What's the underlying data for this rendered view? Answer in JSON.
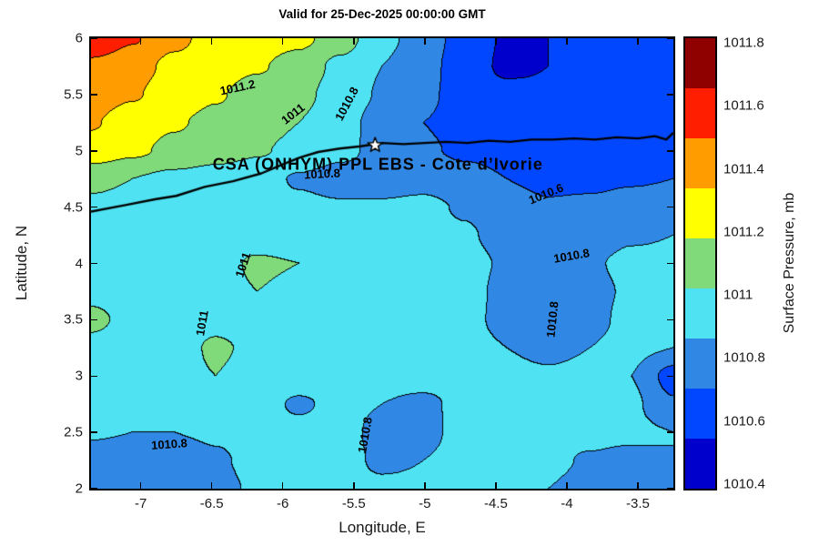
{
  "title": "Valid for 25-Dec-2025 00:00:00 GMT",
  "axes": {
    "xlabel": "Longitude, E",
    "ylabel": "Latitude, N",
    "xticks": {
      "values": [
        -7,
        -6.5,
        -6,
        -5.5,
        -5,
        -4.5,
        -4,
        -3.5
      ],
      "labels": [
        "-7",
        "-6.5",
        "-6",
        "-5.5",
        "-5",
        "-4.5",
        "-4",
        "-3.5"
      ]
    },
    "yticks": {
      "values": [
        6,
        5.5,
        5,
        4.5,
        4,
        3.5,
        3,
        2.5,
        2
      ],
      "labels": [
        "6",
        "5.5",
        "5",
        "4.5",
        "4",
        "3.5",
        "3",
        "2.5",
        "2"
      ]
    }
  },
  "colorbar": {
    "label": "Surface Pressure, mb",
    "tick_labels": [
      "1011.8",
      "1011.6",
      "1011.4",
      "1011.2",
      "1011",
      "1010.8",
      "1010.6",
      "1010.4"
    ],
    "colors_top_to_bottom": [
      "#8f0000",
      "#ff1e00",
      "#ff9c00",
      "#ffff00",
      "#80da7a",
      "#4fe2f2",
      "#3188e4",
      "#0047ff",
      "#0000cd"
    ]
  },
  "chart_data": {
    "type": "filled_contour",
    "units": "mb",
    "xlim": [
      -7.35,
      -3.25
    ],
    "ylim": [
      2,
      6
    ],
    "levels": [
      1010.4,
      1010.6,
      1010.8,
      1011.0,
      1011.2,
      1011.4,
      1011.6,
      1011.8
    ],
    "band_colors": [
      "#0000cd",
      "#0047ff",
      "#3188e4",
      "#4fe2f2",
      "#80da7a",
      "#ffff00",
      "#ff9c00",
      "#ff1e00",
      "#8f0000"
    ],
    "grid": {
      "note": "surface pressure (mb); rows top lat 6.0 to bottom lat 2.0, cols lon -7.35 to -3.25",
      "values": [
        [
          1011.78,
          1011.62,
          1011.45,
          1011.32,
          1011.3,
          1011.25,
          1011.1,
          1010.85,
          1010.72,
          1010.5,
          1010.38,
          1010.4,
          1010.44,
          1010.5,
          1010.58
        ],
        [
          1011.55,
          1011.48,
          1011.35,
          1011.28,
          1011.22,
          1011.12,
          1010.95,
          1010.8,
          1010.68,
          1010.48,
          1010.37,
          1010.4,
          1010.42,
          1010.48,
          1010.55
        ],
        [
          1011.5,
          1011.42,
          1011.3,
          1011.22,
          1011.12,
          1011.05,
          1010.92,
          1010.78,
          1010.65,
          1010.5,
          1010.44,
          1010.42,
          1010.45,
          1010.5,
          1010.55
        ],
        [
          1011.42,
          1011.3,
          1011.22,
          1011.15,
          1011.08,
          1011.0,
          1010.88,
          1010.72,
          1010.6,
          1010.52,
          1010.47,
          1010.45,
          1010.48,
          1010.52,
          1010.55
        ],
        [
          1011.32,
          1011.24,
          1011.15,
          1011.08,
          1011.02,
          1010.95,
          1010.85,
          1010.74,
          1010.63,
          1010.56,
          1010.52,
          1010.5,
          1010.52,
          1010.55,
          1010.58
        ],
        [
          1011.06,
          1011.0,
          1010.95,
          1010.92,
          1010.88,
          1010.78,
          1010.72,
          1010.72,
          1010.74,
          1010.68,
          1010.6,
          1010.55,
          1010.55,
          1010.58,
          1010.6
        ],
        [
          1010.95,
          1010.92,
          1010.9,
          1010.9,
          1010.88,
          1010.84,
          1010.82,
          1010.82,
          1010.84,
          1010.78,
          1010.68,
          1010.62,
          1010.64,
          1010.68,
          1010.7
        ],
        [
          1010.92,
          1010.9,
          1010.9,
          1010.92,
          1010.92,
          1010.88,
          1010.85,
          1010.85,
          1010.86,
          1010.82,
          1010.74,
          1010.7,
          1010.72,
          1010.78,
          1010.8
        ],
        [
          1010.94,
          1010.92,
          1010.92,
          1010.95,
          1011.02,
          1011.0,
          1010.92,
          1010.88,
          1010.88,
          1010.85,
          1010.78,
          1010.72,
          1010.78,
          1010.84,
          1010.84
        ],
        [
          1010.95,
          1010.92,
          1010.92,
          1010.95,
          1011.0,
          1010.97,
          1010.9,
          1010.88,
          1010.88,
          1010.85,
          1010.76,
          1010.72,
          1010.76,
          1010.82,
          1010.82
        ],
        [
          1011.04,
          1010.95,
          1010.92,
          1010.96,
          1010.92,
          1010.88,
          1010.86,
          1010.86,
          1010.86,
          1010.84,
          1010.76,
          1010.72,
          1010.76,
          1010.84,
          1010.83
        ],
        [
          1010.95,
          1010.9,
          1010.94,
          1011.02,
          1010.97,
          1010.88,
          1010.86,
          1010.86,
          1010.86,
          1010.85,
          1010.8,
          1010.76,
          1010.8,
          1010.85,
          1010.8
        ],
        [
          1010.92,
          1010.9,
          1010.95,
          1011.0,
          1010.94,
          1010.88,
          1010.86,
          1010.85,
          1010.86,
          1010.86,
          1010.84,
          1010.82,
          1010.84,
          1010.8,
          1010.52
        ],
        [
          1010.9,
          1010.88,
          1010.88,
          1010.88,
          1010.86,
          1010.78,
          1010.84,
          1010.8,
          1010.77,
          1010.84,
          1010.85,
          1010.85,
          1010.86,
          1010.84,
          1010.62
        ],
        [
          1010.82,
          1010.8,
          1010.8,
          1010.82,
          1010.85,
          1010.84,
          1010.85,
          1010.76,
          1010.76,
          1010.85,
          1010.86,
          1010.86,
          1010.86,
          1010.85,
          1010.8
        ],
        [
          1010.72,
          1010.7,
          1010.72,
          1010.78,
          1010.84,
          1010.84,
          1010.84,
          1010.78,
          1010.8,
          1010.85,
          1010.85,
          1010.84,
          1010.78,
          1010.74,
          1010.8
        ],
        [
          1010.68,
          1010.66,
          1010.7,
          1010.76,
          1010.82,
          1010.84,
          1010.84,
          1010.82,
          1010.82,
          1010.84,
          1010.84,
          1010.8,
          1010.74,
          1010.72,
          1010.78
        ]
      ]
    },
    "contour_labels": [
      {
        "text": "1011.2",
        "lon": -6.32,
        "lat": 5.56,
        "rot": -12
      },
      {
        "text": "1011",
        "lon": -5.93,
        "lat": 5.33,
        "rot": -38
      },
      {
        "text": "1010.8",
        "lon": -5.55,
        "lat": 5.42,
        "rot": -62
      },
      {
        "text": "1010.8",
        "lon": -5.72,
        "lat": 4.8,
        "rot": -3
      },
      {
        "text": "1010.6",
        "lon": -4.15,
        "lat": 4.62,
        "rot": -22
      },
      {
        "text": "1010.8",
        "lon": -3.97,
        "lat": 4.07,
        "rot": -10
      },
      {
        "text": "1011",
        "lon": -6.28,
        "lat": 3.99,
        "rot": -72
      },
      {
        "text": "1011",
        "lon": -6.57,
        "lat": 3.47,
        "rot": -80
      },
      {
        "text": "1010.8",
        "lon": -4.1,
        "lat": 3.5,
        "rot": -84
      },
      {
        "text": "1010.8",
        "lon": -5.42,
        "lat": 2.48,
        "rot": -80
      },
      {
        "text": "1010.8",
        "lon": -6.8,
        "lat": 2.4,
        "rot": -4
      }
    ],
    "coastline": [
      [
        -7.35,
        4.46
      ],
      [
        -7.1,
        4.52
      ],
      [
        -6.9,
        4.57
      ],
      [
        -6.75,
        4.6
      ],
      [
        -6.55,
        4.68
      ],
      [
        -6.35,
        4.73
      ],
      [
        -6.15,
        4.8
      ],
      [
        -6.0,
        4.88
      ],
      [
        -5.88,
        4.94
      ],
      [
        -5.75,
        4.99
      ],
      [
        -5.6,
        5.02
      ],
      [
        -5.45,
        5.04
      ],
      [
        -5.3,
        5.07
      ],
      [
        -5.15,
        5.06
      ],
      [
        -5.0,
        5.07
      ],
      [
        -4.85,
        5.08
      ],
      [
        -4.7,
        5.07
      ],
      [
        -4.55,
        5.09
      ],
      [
        -4.4,
        5.08
      ],
      [
        -4.25,
        5.1
      ],
      [
        -4.1,
        5.1
      ],
      [
        -3.95,
        5.11
      ],
      [
        -3.8,
        5.1
      ],
      [
        -3.65,
        5.12
      ],
      [
        -3.5,
        5.11
      ],
      [
        -3.38,
        5.13
      ],
      [
        -3.3,
        5.1
      ],
      [
        -3.25,
        5.16
      ]
    ],
    "marker": {
      "type": "star",
      "lon": -5.35,
      "lat": 5.05,
      "fill": "#ffffff",
      "edge": "#000000"
    },
    "annotation": {
      "text": "CSA (ONHYM) PPL EBS  - Cote d’Ivorie",
      "lon": -5.33,
      "lat": 4.88
    }
  }
}
